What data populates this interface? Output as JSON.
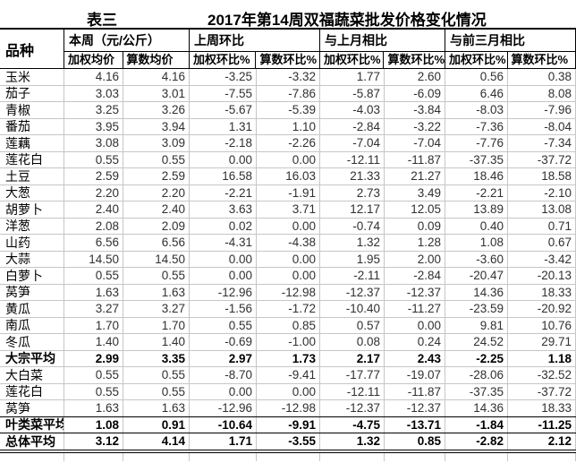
{
  "title": {
    "tag": "表三",
    "main": "2017年第14周双福蔬菜批发价格变化情况"
  },
  "colors": {
    "background": "#ffffff",
    "text": "#000000",
    "number_text": "#303030",
    "grid_line": "#c6c6c6",
    "header_border": "#000000"
  },
  "table": {
    "corner_header": "品种",
    "groups": [
      {
        "label": "本周（元/公斤）",
        "sub": [
          "加权均价",
          "算数均价"
        ]
      },
      {
        "label": "上周环比",
        "sub": [
          "加权环比%",
          "算数环比%"
        ]
      },
      {
        "label": "与上月相比",
        "sub": [
          "加权环比%",
          "算数环比%"
        ]
      },
      {
        "label": "与前三月相比",
        "sub": [
          "加权环比%",
          "算数环比%"
        ]
      }
    ],
    "rows": [
      {
        "name": "玉米",
        "values": [
          "4.16",
          "4.16",
          "-3.25",
          "-3.32",
          "1.77",
          "2.60",
          "0.56",
          "0.38"
        ]
      },
      {
        "name": "茄子",
        "values": [
          "3.03",
          "3.01",
          "-7.55",
          "-7.86",
          "-5.87",
          "-6.09",
          "6.46",
          "8.08"
        ]
      },
      {
        "name": "青椒",
        "values": [
          "3.25",
          "3.26",
          "-5.67",
          "-5.39",
          "-4.03",
          "-3.84",
          "-8.03",
          "-7.96"
        ]
      },
      {
        "name": "番茄",
        "values": [
          "3.95",
          "3.94",
          "1.31",
          "1.10",
          "-2.84",
          "-3.22",
          "-7.36",
          "-8.04"
        ]
      },
      {
        "name": "莲藕",
        "values": [
          "3.08",
          "3.09",
          "-2.18",
          "-2.26",
          "-7.04",
          "-7.04",
          "-7.76",
          "-7.34"
        ]
      },
      {
        "name": "莲花白",
        "values": [
          "0.55",
          "0.55",
          "0.00",
          "0.00",
          "-12.11",
          "-11.87",
          "-37.35",
          "-37.72"
        ]
      },
      {
        "name": "土豆",
        "values": [
          "2.59",
          "2.59",
          "16.58",
          "16.03",
          "21.33",
          "21.27",
          "18.46",
          "18.58"
        ]
      },
      {
        "name": "大葱",
        "values": [
          "2.20",
          "2.20",
          "-2.21",
          "-1.91",
          "2.73",
          "3.49",
          "-2.21",
          "-2.10"
        ]
      },
      {
        "name": "胡萝卜",
        "values": [
          "2.40",
          "2.40",
          "3.63",
          "3.71",
          "12.17",
          "12.05",
          "13.89",
          "13.08"
        ]
      },
      {
        "name": "洋葱",
        "values": [
          "2.08",
          "2.09",
          "0.02",
          "0.00",
          "-0.74",
          "0.09",
          "0.40",
          "0.71"
        ]
      },
      {
        "name": "山药",
        "values": [
          "6.56",
          "6.56",
          "-4.31",
          "-4.38",
          "1.32",
          "1.28",
          "1.08",
          "0.67"
        ]
      },
      {
        "name": "大蒜",
        "values": [
          "14.50",
          "14.50",
          "0.00",
          "0.00",
          "1.95",
          "2.00",
          "-3.60",
          "-3.42"
        ]
      },
      {
        "name": "白萝卜",
        "values": [
          "0.55",
          "0.55",
          "0.00",
          "0.00",
          "-2.11",
          "-2.84",
          "-20.47",
          "-20.13"
        ]
      },
      {
        "name": "莴笋",
        "values": [
          "1.63",
          "1.63",
          "-12.96",
          "-12.98",
          "-12.37",
          "-12.37",
          "14.36",
          "18.33"
        ]
      },
      {
        "name": "黄瓜",
        "values": [
          "3.27",
          "3.27",
          "-1.56",
          "-1.72",
          "-10.40",
          "-11.27",
          "-23.59",
          "-20.92"
        ]
      },
      {
        "name": "南瓜",
        "values": [
          "1.70",
          "1.70",
          "0.55",
          "0.85",
          "0.57",
          "0.00",
          "9.81",
          "10.76"
        ]
      },
      {
        "name": "冬瓜",
        "values": [
          "1.40",
          "1.40",
          "-0.69",
          "-1.00",
          "0.08",
          "0.24",
          "24.52",
          "29.71"
        ]
      },
      {
        "name": "大宗平均",
        "values": [
          "2.99",
          "3.35",
          "2.97",
          "1.73",
          "2.17",
          "2.43",
          "-2.25",
          "1.18"
        ],
        "bold": true
      },
      {
        "name": "大白菜",
        "values": [
          "0.55",
          "0.55",
          "-8.70",
          "-9.41",
          "-17.77",
          "-19.07",
          "-28.06",
          "-32.52"
        ]
      },
      {
        "name": "莲花白",
        "values": [
          "0.55",
          "0.55",
          "0.00",
          "0.00",
          "-12.11",
          "-11.87",
          "-37.35",
          "-37.72"
        ]
      },
      {
        "name": "莴笋",
        "values": [
          "1.63",
          "1.63",
          "-12.96",
          "-12.98",
          "-12.37",
          "-12.37",
          "14.36",
          "18.33"
        ]
      },
      {
        "name": "叶类菜平均",
        "values": [
          "1.08",
          "0.91",
          "-10.64",
          "-9.91",
          "-4.75",
          "-13.71",
          "-1.84",
          "-11.25"
        ],
        "bold": true,
        "strong_top": true
      },
      {
        "name": "总体平均",
        "values": [
          "3.12",
          "4.14",
          "1.71",
          "-3.55",
          "1.32",
          "0.85",
          "-2.82",
          "2.12"
        ],
        "bold": true,
        "strong_top": true
      }
    ]
  }
}
